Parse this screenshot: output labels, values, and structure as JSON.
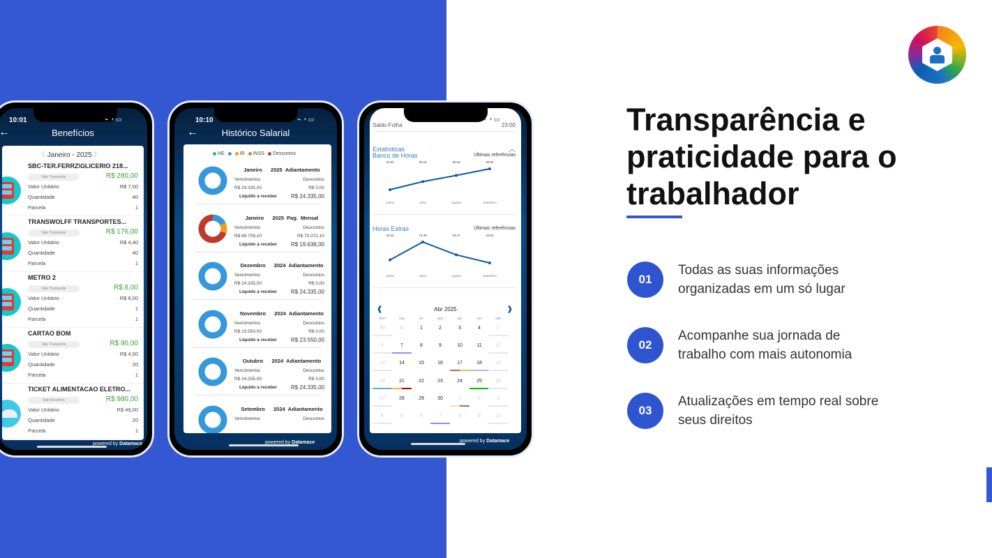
{
  "slide": {
    "title_lines": [
      "Transparência e",
      "praticidade para o",
      "trabalhador"
    ],
    "features": [
      {
        "number": "01",
        "lines": [
          "Todas as suas informações",
          "organizadas em um só lugar"
        ]
      },
      {
        "number": "02",
        "lines": [
          "Acompanhe sua jornada de",
          "trabalho com mais autonomia"
        ]
      },
      {
        "number": "03",
        "lines": [
          "Atualizações em tempo real sobre",
          "seus direitos"
        ]
      }
    ],
    "accent": "#3358d2"
  },
  "phone1": {
    "time": "10:01",
    "title": "Benefícios",
    "month": "Janeiro",
    "sep": "-",
    "year": "2025",
    "labels": {
      "unit": "Valor Unitário",
      "qty": "Quantidade",
      "parcel": "Parcela"
    },
    "items": [
      {
        "name": "SBC-TER.FERRZ\\GLICERIO 218...",
        "type": "Vale Transporte",
        "amount": "R$ 280,00",
        "unit": "R$ 7,00",
        "qty": "40",
        "parcel": "1",
        "icon": "bus-icon"
      },
      {
        "name": "TRANSWOLFF TRANSPORTES...",
        "type": "Vale Transporte",
        "amount": "R$ 176,00",
        "unit": "R$ 4,40",
        "qty": "40",
        "parcel": "1",
        "icon": "bus-icon"
      },
      {
        "name": "METRO 2",
        "type": "Vale Transporte",
        "amount": "R$ 8,00",
        "unit": "R$ 8,00",
        "qty": "1",
        "parcel": "1",
        "icon": "bus-icon"
      },
      {
        "name": "CARTAO BOM",
        "type": "Vale Transporte",
        "amount": "R$ 90,00",
        "unit": "R$ 4,50",
        "qty": "20",
        "parcel": "1",
        "icon": "bus-icon"
      },
      {
        "name": "TICKET ALIMENTACAO ELETRO...",
        "type": "Vale Benefício",
        "amount": "R$ 980,00",
        "unit": "R$ 49,00",
        "qty": "20",
        "parcel": "1",
        "icon": "food-tray-icon"
      }
    ],
    "powered": "powered by",
    "brand": "Datamace"
  },
  "phone2": {
    "time": "10:10",
    "title": "Histórico Salarial",
    "legend": [
      {
        "label": "HE",
        "color": "#1abc9c"
      },
      {
        "label": "",
        "color": "#3498db"
      },
      {
        "label": "IR",
        "color": "#f39c12"
      },
      {
        "label": "INSS",
        "color": "#e67e22"
      },
      {
        "label": "Descontos",
        "color": "#c0392b"
      }
    ],
    "labels": {
      "earn": "Vencimentos",
      "disc": "Descontos",
      "net": "Líquido a receber"
    },
    "items": [
      {
        "month": "Janeiro",
        "year": "2025",
        "kind": "Adiantamento",
        "earn": "R$ 24.335,00",
        "disc": "R$ 0,00",
        "net": "R$ 24.335,00",
        "slices": [
          {
            "color": "#3498db",
            "value": 1
          }
        ]
      },
      {
        "month": "Janeiro",
        "year": "2025",
        "kind": "Pag. Mensal",
        "earn": "R$ 89.709,10",
        "disc": "R$ 70.071,10",
        "net": "R$ 19.638,00",
        "slices": [
          {
            "color": "#3498db",
            "value": 0.18
          },
          {
            "color": "#f39c12",
            "value": 0.12
          },
          {
            "color": "#c0392b",
            "value": 0.7
          }
        ]
      },
      {
        "month": "Dezembro",
        "year": "2024",
        "kind": "Adiantamento",
        "earn": "R$ 24.335,00",
        "disc": "R$ 0,00",
        "net": "R$ 24.335,00",
        "slices": [
          {
            "color": "#3498db",
            "value": 1
          }
        ]
      },
      {
        "month": "Novembro",
        "year": "2024",
        "kind": "Adiantamento",
        "earn": "R$ 23.550,00",
        "disc": "R$ 0,00",
        "net": "R$ 23.550,00",
        "slices": [
          {
            "color": "#3498db",
            "value": 1
          }
        ]
      },
      {
        "month": "Outubro",
        "year": "2024",
        "kind": "Adiantamento",
        "earn": "R$ 24.335,00",
        "disc": "R$ 0,00",
        "net": "R$ 24.335,00",
        "slices": [
          {
            "color": "#3498db",
            "value": 1
          }
        ]
      },
      {
        "month": "Setembro",
        "year": "2024",
        "kind": "Adiantamento",
        "earn": "",
        "disc": "",
        "net": "",
        "slices": [
          {
            "color": "#3498db",
            "value": 1
          }
        ]
      }
    ],
    "powered": "powered by",
    "brand": "Datamace"
  },
  "phone3": {
    "time": "10:09",
    "top_left": "Saldo Folha",
    "top_right": "23:00",
    "section": "Estatísticas",
    "charts": [
      {
        "title": "Banco de Horas",
        "ref": "Últimas referências",
        "months": [
          "Junho",
          "Julho",
          "Agosto",
          "Setembro"
        ],
        "labels": [
          "24:03",
          "30:15",
          "35:00",
          "40:04"
        ]
      },
      {
        "title": "Horas Extras",
        "ref": "Últimas referências",
        "months": [
          "Junho",
          "Julho",
          "Agosto",
          "Setembro"
        ],
        "labels": [
          "31:23",
          "74:48",
          "43:47",
          "24:01"
        ]
      }
    ],
    "calendar": {
      "month": "Abr 2025",
      "weekdays": [
        "dom",
        "seg",
        "ter",
        "qua",
        "qui",
        "sex",
        "sáb"
      ],
      "weeks": [
        [
          [
            "30",
            1
          ],
          [
            "31",
            1
          ],
          [
            "1",
            0
          ],
          [
            "2",
            0
          ],
          [
            "3",
            0
          ],
          [
            "4",
            0
          ],
          [
            "5",
            1
          ]
        ],
        [
          [
            "6",
            1
          ],
          [
            "7",
            0,
            [
              "#8c8cff"
            ]
          ],
          [
            "8",
            0
          ],
          [
            "9",
            0
          ],
          [
            "10",
            0
          ],
          [
            "11",
            0
          ],
          [
            "12",
            1
          ]
        ],
        [
          [
            "13",
            1
          ],
          [
            "14",
            0
          ],
          [
            "15",
            0
          ],
          [
            "16",
            0
          ],
          [
            "17",
            0,
            [
              "#c0605a",
              "#f5b942"
            ]
          ],
          [
            "18",
            0,
            [
              "#b0b0ff"
            ]
          ],
          [
            "19",
            1
          ]
        ],
        [
          [
            "20",
            1,
            [
              "#5aa8ff"
            ]
          ],
          [
            "21",
            0,
            [
              "#f5b942",
              "#b00000"
            ]
          ],
          [
            "22",
            0
          ],
          [
            "23",
            0
          ],
          [
            "24",
            0
          ],
          [
            "25",
            0,
            [
              "#00c000"
            ]
          ],
          [
            "26",
            1
          ]
        ],
        [
          [
            "27",
            1
          ],
          [
            "28",
            0
          ],
          [
            "29",
            0
          ],
          [
            "30",
            0
          ],
          [
            "1",
            1,
            [
              "#f5e0a0",
              "#c0605a"
            ]
          ],
          [
            "2",
            1
          ],
          [
            "3",
            1
          ]
        ],
        [
          [
            "4",
            1
          ],
          [
            "5",
            1
          ],
          [
            "6",
            1
          ],
          [
            "7",
            1,
            [
              "#8c8cff"
            ]
          ],
          [
            "8",
            1
          ],
          [
            "9",
            1
          ],
          [
            "10",
            1
          ]
        ]
      ]
    },
    "powered": "powered by",
    "brand": "Datamace"
  }
}
